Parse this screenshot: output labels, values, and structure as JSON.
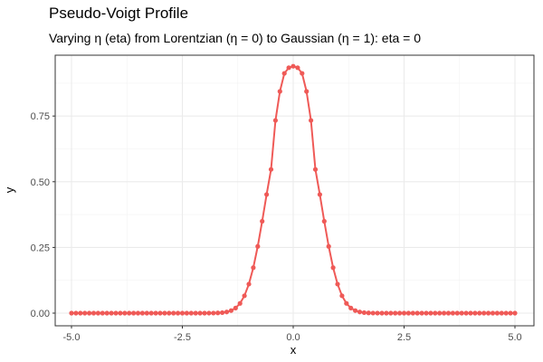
{
  "chart_data": {
    "type": "line",
    "title": "Pseudo-Voigt Profile",
    "subtitle": "Varying η (eta) from Lorentzian (η = 0) to Gaussian (η = 1): eta = 0",
    "xlabel": "x",
    "ylabel": "y",
    "xlim": [
      -5.0,
      5.0
    ],
    "ylim": [
      0.0,
      0.94
    ],
    "x_ticks": [
      -5.0,
      -2.5,
      0.0,
      2.5,
      5.0
    ],
    "x_tick_labels": [
      "-5.0",
      "-2.5",
      "0.0",
      "2.5",
      "5.0"
    ],
    "y_ticks": [
      0.0,
      0.25,
      0.5,
      0.75
    ],
    "y_tick_labels": [
      "0.00",
      "0.25",
      "0.50",
      "0.75"
    ],
    "grid": true,
    "legend": "none",
    "series": [
      {
        "color": "#ef5a57",
        "x": [
          -5.0,
          -4.9,
          -4.8,
          -4.7,
          -4.6,
          -4.5,
          -4.4,
          -4.3,
          -4.2,
          -4.1,
          -4.0,
          -3.9,
          -3.8,
          -3.7,
          -3.6,
          -3.5,
          -3.4,
          -3.3,
          -3.2,
          -3.1,
          -3.0,
          -2.9,
          -2.8,
          -2.7,
          -2.6,
          -2.5,
          -2.4,
          -2.3,
          -2.2,
          -2.1,
          -2.0,
          -1.9,
          -1.8,
          -1.7,
          -1.6,
          -1.5,
          -1.4,
          -1.3,
          -1.2,
          -1.1,
          -1.0,
          -0.9,
          -0.8,
          -0.7,
          -0.6,
          -0.5,
          -0.4,
          -0.3,
          -0.2,
          -0.1,
          0.0,
          0.1,
          0.2,
          0.3,
          0.4,
          0.5,
          0.6,
          0.7,
          0.8,
          0.9,
          1.0,
          1.1,
          1.2,
          1.3,
          1.4,
          1.5,
          1.6,
          1.7,
          1.8,
          1.9,
          2.0,
          2.1,
          2.2,
          2.3,
          2.4,
          2.5,
          2.6,
          2.7,
          2.8,
          2.9,
          3.0,
          3.1,
          3.2,
          3.3,
          3.4,
          3.5,
          3.6,
          3.7,
          3.8,
          3.9,
          4.0,
          4.1,
          4.2,
          4.3,
          4.4,
          4.5,
          4.6,
          4.7,
          4.8,
          4.9,
          5.0
        ],
        "y": [
          0,
          0,
          0,
          0,
          0,
          0,
          0,
          0,
          0,
          0,
          0,
          0,
          0,
          0,
          0,
          0,
          0,
          0,
          0,
          0,
          0,
          0,
          0,
          0,
          0,
          0,
          0,
          0,
          0,
          0,
          0,
          0.0001,
          0.0003,
          0.0008,
          0.0019,
          0.0044,
          0.0096,
          0.0194,
          0.037,
          0.066,
          0.1104,
          0.173,
          0.254,
          0.3496,
          0.4514,
          0.5468,
          0.7333,
          0.8437,
          0.9122,
          0.9338,
          0.9394,
          0.9338,
          0.9122,
          0.8437,
          0.7333,
          0.5468,
          0.4514,
          0.3496,
          0.254,
          0.173,
          0.1104,
          0.066,
          0.037,
          0.0194,
          0.0096,
          0.0044,
          0.0019,
          0.0008,
          0.0003,
          0.0001,
          0,
          0,
          0,
          0,
          0,
          0,
          0,
          0,
          0,
          0,
          0,
          0,
          0,
          0,
          0,
          0,
          0,
          0,
          0,
          0,
          0,
          0,
          0,
          0,
          0,
          0,
          0,
          0,
          0,
          0,
          0
        ]
      }
    ]
  }
}
